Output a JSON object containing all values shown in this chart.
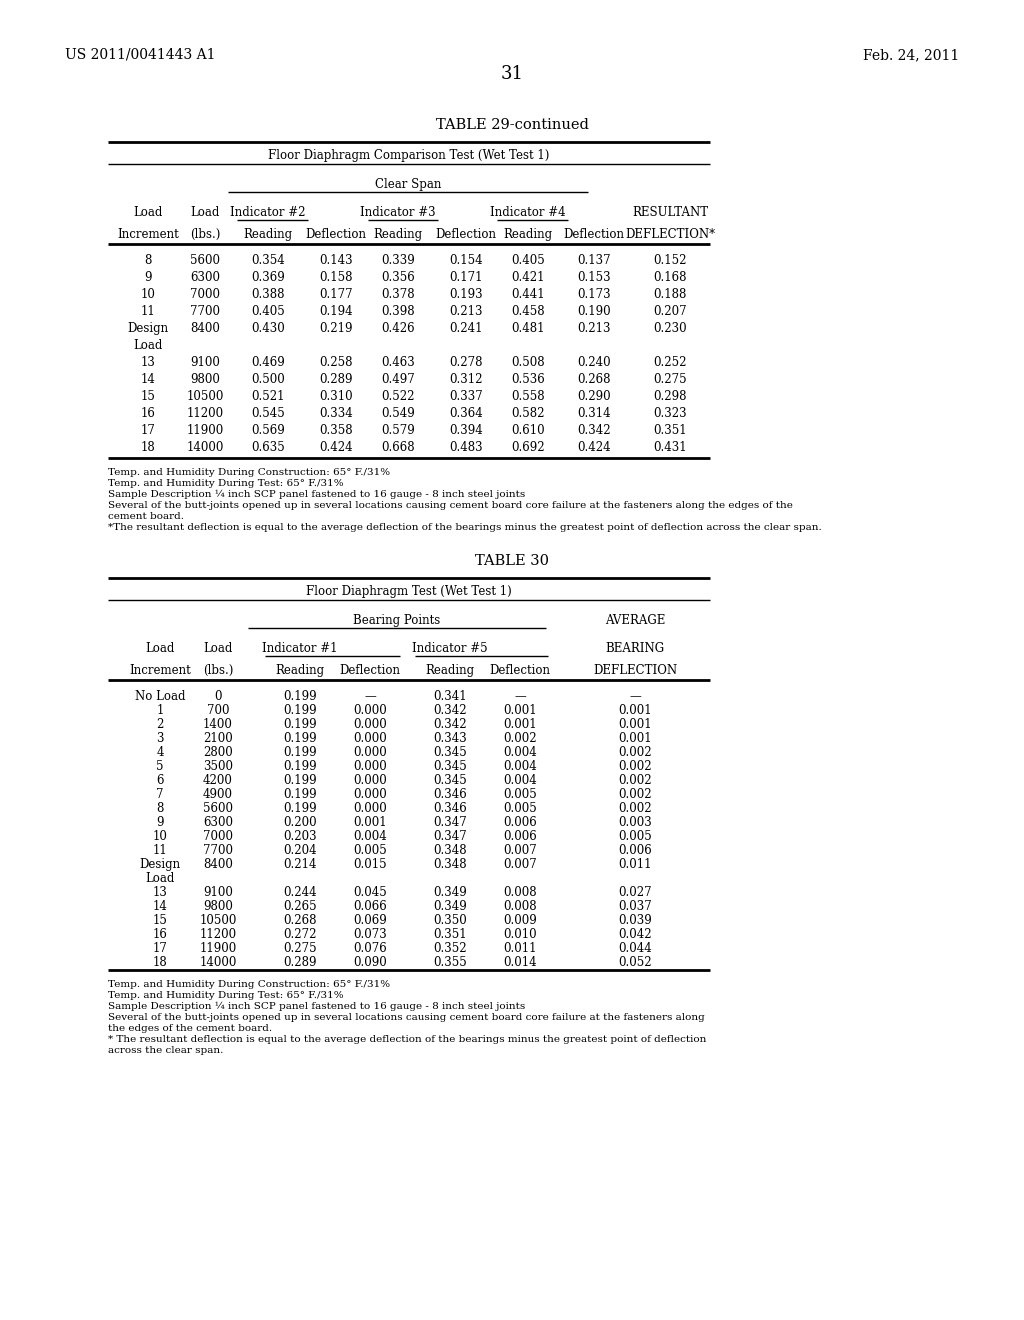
{
  "header_left": "US 2011/0041443 A1",
  "header_right": "Feb. 24, 2011",
  "page_number": "31",
  "table1_title": "TABLE 29-continued",
  "table1_subtitle": "Floor Diaphragm Comparison Test (Wet Test 1)",
  "table1_span_header": "Clear Span",
  "table1_col_headers_row1": [
    "Load",
    "Load",
    "Indicator #2",
    "",
    "Indicator #3",
    "",
    "Indicator #4",
    "",
    "RESULTANT"
  ],
  "table1_col_headers_row2": [
    "Increment",
    "(lbs.)",
    "Reading",
    "Deflection",
    "Reading",
    "Deflection",
    "Reading",
    "Deflection",
    "DEFLECTION*"
  ],
  "table1_data": [
    [
      "8",
      "5600",
      "0.354",
      "0.143",
      "0.339",
      "0.154",
      "0.405",
      "0.137",
      "0.152"
    ],
    [
      "9",
      "6300",
      "0.369",
      "0.158",
      "0.356",
      "0.171",
      "0.421",
      "0.153",
      "0.168"
    ],
    [
      "10",
      "7000",
      "0.388",
      "0.177",
      "0.378",
      "0.193",
      "0.441",
      "0.173",
      "0.188"
    ],
    [
      "11",
      "7700",
      "0.405",
      "0.194",
      "0.398",
      "0.213",
      "0.458",
      "0.190",
      "0.207"
    ],
    [
      "Design",
      "8400",
      "0.430",
      "0.219",
      "0.426",
      "0.241",
      "0.481",
      "0.213",
      "0.230"
    ],
    [
      "Load",
      "",
      "",
      "",
      "",
      "",
      "",
      "",
      ""
    ],
    [
      "13",
      "9100",
      "0.469",
      "0.258",
      "0.463",
      "0.278",
      "0.508",
      "0.240",
      "0.252"
    ],
    [
      "14",
      "9800",
      "0.500",
      "0.289",
      "0.497",
      "0.312",
      "0.536",
      "0.268",
      "0.275"
    ],
    [
      "15",
      "10500",
      "0.521",
      "0.310",
      "0.522",
      "0.337",
      "0.558",
      "0.290",
      "0.298"
    ],
    [
      "16",
      "11200",
      "0.545",
      "0.334",
      "0.549",
      "0.364",
      "0.582",
      "0.314",
      "0.323"
    ],
    [
      "17",
      "11900",
      "0.569",
      "0.358",
      "0.579",
      "0.394",
      "0.610",
      "0.342",
      "0.351"
    ],
    [
      "18",
      "14000",
      "0.635",
      "0.424",
      "0.668",
      "0.483",
      "0.692",
      "0.424",
      "0.431"
    ]
  ],
  "table1_footnotes": [
    [
      "Temp. and Humidity During Construction: 65° F./31%"
    ],
    [
      "Temp. and Humidity During Test: 65° F./31%"
    ],
    [
      "Sample Description ¼ inch SCP panel fastened to 16 gauge - 8 inch steel joints"
    ],
    [
      "Several of the butt-joints opened up in several locations causing cement board core failure at the fasteners along the edges of the",
      "cement board."
    ],
    [
      "*The resultant deflection is equal to the average deflection of the bearings minus the greatest point of deflection across the clear span."
    ]
  ],
  "table2_title": "TABLE 30",
  "table2_subtitle": "Floor Diaphragm Test (Wet Test 1)",
  "table2_span_header": "Bearing Points",
  "table2_avg_header": "AVERAGE",
  "table2_col_headers_row1": [
    "Load",
    "Load",
    "Indicator #1",
    "",
    "Indicator #5",
    "",
    "BEARING"
  ],
  "table2_col_headers_row2": [
    "Increment",
    "(lbs.)",
    "Reading",
    "Deflection",
    "Reading",
    "Deflection",
    "DEFLECTION"
  ],
  "table2_data": [
    [
      "No Load",
      "0",
      "0.199",
      "—",
      "0.341",
      "—",
      "—"
    ],
    [
      "1",
      "700",
      "0.199",
      "0.000",
      "0.342",
      "0.001",
      "0.001"
    ],
    [
      "2",
      "1400",
      "0.199",
      "0.000",
      "0.342",
      "0.001",
      "0.001"
    ],
    [
      "3",
      "2100",
      "0.199",
      "0.000",
      "0.343",
      "0.002",
      "0.001"
    ],
    [
      "4",
      "2800",
      "0.199",
      "0.000",
      "0.345",
      "0.004",
      "0.002"
    ],
    [
      "5",
      "3500",
      "0.199",
      "0.000",
      "0.345",
      "0.004",
      "0.002"
    ],
    [
      "6",
      "4200",
      "0.199",
      "0.000",
      "0.345",
      "0.004",
      "0.002"
    ],
    [
      "7",
      "4900",
      "0.199",
      "0.000",
      "0.346",
      "0.005",
      "0.002"
    ],
    [
      "8",
      "5600",
      "0.199",
      "0.000",
      "0.346",
      "0.005",
      "0.002"
    ],
    [
      "9",
      "6300",
      "0.200",
      "0.001",
      "0.347",
      "0.006",
      "0.003"
    ],
    [
      "10",
      "7000",
      "0.203",
      "0.004",
      "0.347",
      "0.006",
      "0.005"
    ],
    [
      "11",
      "7700",
      "0.204",
      "0.005",
      "0.348",
      "0.007",
      "0.006"
    ],
    [
      "Design",
      "8400",
      "0.214",
      "0.015",
      "0.348",
      "0.007",
      "0.011"
    ],
    [
      "Load",
      "",
      "",
      "",
      "",
      "",
      ""
    ],
    [
      "13",
      "9100",
      "0.244",
      "0.045",
      "0.349",
      "0.008",
      "0.027"
    ],
    [
      "14",
      "9800",
      "0.265",
      "0.066",
      "0.349",
      "0.008",
      "0.037"
    ],
    [
      "15",
      "10500",
      "0.268",
      "0.069",
      "0.350",
      "0.009",
      "0.039"
    ],
    [
      "16",
      "11200",
      "0.272",
      "0.073",
      "0.351",
      "0.010",
      "0.042"
    ],
    [
      "17",
      "11900",
      "0.275",
      "0.076",
      "0.352",
      "0.011",
      "0.044"
    ],
    [
      "18",
      "14000",
      "0.289",
      "0.090",
      "0.355",
      "0.014",
      "0.052"
    ]
  ],
  "table2_footnotes": [
    [
      "Temp. and Humidity During Construction: 65° F./31%"
    ],
    [
      "Temp. and Humidity During Test: 65° F./31%"
    ],
    [
      "Sample Description ¼ inch SCP panel fastened to 16 gauge - 8 inch steel joints"
    ],
    [
      "Several of the butt-joints opened up in several locations causing cement board core failure at the fasteners along",
      "the edges of the cement board."
    ],
    [
      "* The resultant deflection is equal to the average deflection of the bearings minus the greatest point of deflection",
      "across the clear span."
    ]
  ]
}
